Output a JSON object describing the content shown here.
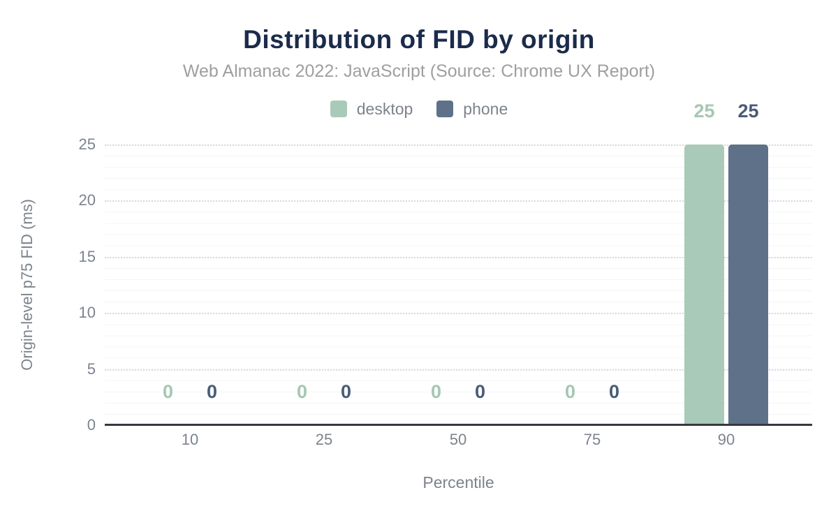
{
  "header": {
    "title": "Distribution of FID by origin",
    "subtitle": "Web Almanac 2022: JavaScript (Source: Chrome UX Report)"
  },
  "colors": {
    "title": "#1b2b4b",
    "subtitle_text": "#9e9fa1",
    "axis_text": "#7d838c",
    "axis_line": "#35393f",
    "major_gridline": "#d8dade",
    "minor_gridline": "#f3f4f4",
    "desktop": "#a9cab8",
    "phone": "#5f7189"
  },
  "legend": {
    "items": [
      {
        "label": "desktop",
        "color": "#a9cab8"
      },
      {
        "label": "phone",
        "color": "#5f7189"
      }
    ]
  },
  "chart_data": {
    "type": "bar",
    "title": "Distribution of FID by origin",
    "subtitle": "Web Almanac 2022: JavaScript (Source: Chrome UX Report)",
    "categories": [
      "10",
      "25",
      "50",
      "75",
      "90"
    ],
    "series": [
      {
        "name": "desktop",
        "color": "#a9cab8",
        "label_color": "#a5c7b4",
        "values": [
          0,
          0,
          0,
          0,
          25
        ]
      },
      {
        "name": "phone",
        "color": "#5f7189",
        "label_color": "#4a5c75",
        "values": [
          0,
          0,
          0,
          0,
          25
        ]
      }
    ],
    "xlabel": "Percentile",
    "ylabel": "Origin-level p75 FID (ms)",
    "ylim": [
      0,
      25
    ],
    "yticks_display": [
      "25",
      "20",
      "15",
      "10",
      "5",
      "0"
    ],
    "grid": "major gridlines dotted every 5 ms, minor gridlines every 1 ms",
    "legend_position": "top center",
    "data_labels": "values shown above bars"
  }
}
